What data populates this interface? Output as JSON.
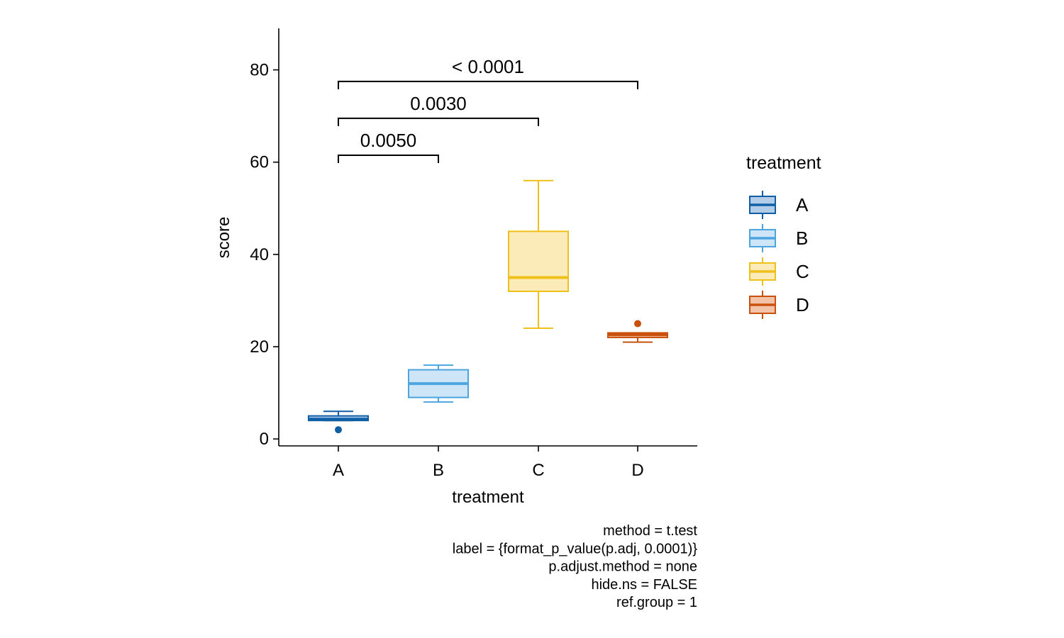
{
  "chart_data": {
    "type": "boxplot",
    "xlabel": "treatment",
    "ylabel": "score",
    "ylim": [
      -1.5,
      89
    ],
    "yticks": [
      0,
      20,
      40,
      60,
      80
    ],
    "categories": [
      "A",
      "B",
      "C",
      "D"
    ],
    "boxes": [
      {
        "group": "A",
        "whisker_low": 4,
        "q1": 4,
        "median": 4.3,
        "q3": 5,
        "whisker_high": 6,
        "outliers": [
          2
        ],
        "color": "#0F5FA6",
        "fill": "#B3CDE8"
      },
      {
        "group": "B",
        "whisker_low": 8,
        "q1": 9,
        "median": 12,
        "q3": 15,
        "whisker_high": 16,
        "outliers": [],
        "color": "#4BA6E0",
        "fill": "#CDE5F6"
      },
      {
        "group": "C",
        "whisker_low": 24,
        "q1": 32,
        "median": 35,
        "q3": 45,
        "whisker_high": 56,
        "outliers": [],
        "color": "#EFC01A",
        "fill": "#FBEBB8"
      },
      {
        "group": "D",
        "whisker_low": 21,
        "q1": 22,
        "median": 22.6,
        "q3": 23,
        "whisker_high": 23,
        "outliers": [
          25
        ],
        "color": "#C9510C",
        "fill": "#F2C3A8"
      }
    ],
    "comparisons": [
      {
        "group1": "A",
        "group2": "B",
        "y": 61.5,
        "label": "0.0050"
      },
      {
        "group1": "A",
        "group2": "C",
        "y": 69.5,
        "label": "0.0030"
      },
      {
        "group1": "A",
        "group2": "D",
        "y": 77.5,
        "label": "< 0.0001"
      }
    ],
    "legend": {
      "title": "treatment",
      "position": "right",
      "items": [
        "A",
        "B",
        "C",
        "D"
      ]
    },
    "caption": [
      "method = t.test",
      "label = {format_p_value(p.adj, 0.0001)}",
      "p.adjust.method = none",
      "hide.ns = FALSE",
      "ref.group = 1"
    ],
    "grid": false
  }
}
